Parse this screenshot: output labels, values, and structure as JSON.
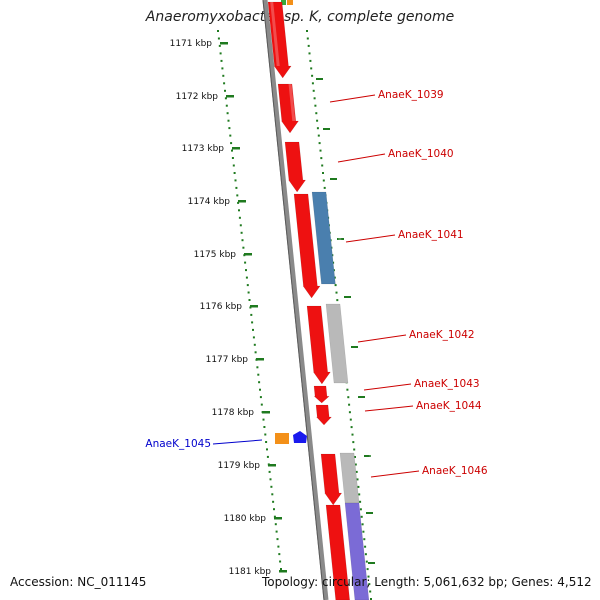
{
  "title": "Anaeromyxobacter sp. K, complete genome",
  "accession_text": "Accession: NC_011145",
  "summary_text": "Topology: circular; Length: 5,061,632 bp; Genes: 4,512",
  "colors": {
    "forward_gene": "#ee1111",
    "blue_gene": "#4a7fae",
    "grey_gene": "#b9b9b9",
    "purple_gene": "#7b6bd6",
    "orange_gene": "#f39019",
    "navy_gene": "#1a1aee",
    "green_gene": "#3aa83a",
    "scale_dots": "#1f7a1f",
    "backbone": "#808080",
    "label_red": "#cc0000",
    "label_blue": "#0000cc"
  },
  "ticks": [
    {
      "label": "1171 kbp"
    },
    {
      "label": "1172 kbp"
    },
    {
      "label": "1173 kbp"
    },
    {
      "label": "1174 kbp"
    },
    {
      "label": "1175 kbp"
    },
    {
      "label": "1176 kbp"
    },
    {
      "label": "1177 kbp"
    },
    {
      "label": "1178 kbp"
    },
    {
      "label": "1179 kbp"
    },
    {
      "label": "1180 kbp"
    },
    {
      "label": "1181 kbp"
    }
  ],
  "gene_labels": [
    {
      "text": "AnaeK_1039",
      "color": "label_red"
    },
    {
      "text": "AnaeK_1040",
      "color": "label_red"
    },
    {
      "text": "AnaeK_1041",
      "color": "label_red"
    },
    {
      "text": "AnaeK_1042",
      "color": "label_red"
    },
    {
      "text": "AnaeK_1043",
      "color": "label_red"
    },
    {
      "text": "AnaeK_1044",
      "color": "label_red"
    },
    {
      "text": "AnaeK_1045",
      "color": "label_blue"
    },
    {
      "text": "AnaeK_1046",
      "color": "label_red"
    }
  ]
}
